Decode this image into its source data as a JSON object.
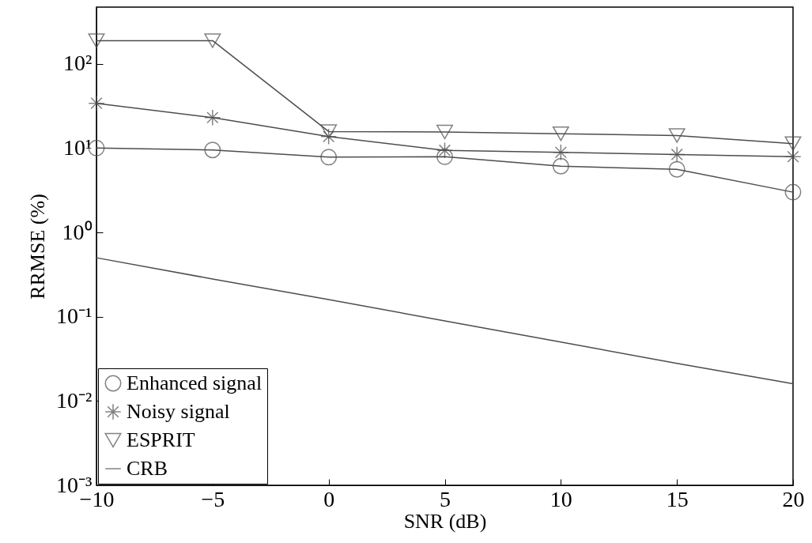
{
  "chart_data": {
    "type": "line",
    "xlabel": "SNR (dB)",
    "ylabel": "RRMSE (%)",
    "x": [
      -10,
      -5,
      0,
      5,
      10,
      15,
      20
    ],
    "series": [
      {
        "name": "Enhanced signal",
        "color": "#4d4d4d",
        "marker": "circle",
        "values": [
          10,
          9.5,
          7.8,
          7.9,
          6.1,
          5.6,
          3.0
        ]
      },
      {
        "name": "Noisy signal",
        "color": "#4d4d4d",
        "marker": "cross",
        "values": [
          34,
          23,
          13.7,
          9.4,
          8.9,
          8.4,
          7.9
        ]
      },
      {
        "name": "ESPRIT",
        "color": "#4d4d4d",
        "marker": "triangle",
        "values": [
          188,
          188,
          15.7,
          15.5,
          14.8,
          14.1,
          11.3
        ]
      },
      {
        "name": "CRB",
        "color": "#4d4d4d",
        "marker": "none",
        "values": [
          0.5,
          0.28,
          0.16,
          0.089,
          0.05,
          0.028,
          0.016
        ]
      }
    ],
    "xlim": [
      -10,
      20
    ],
    "xticks": [
      -10,
      -5,
      0,
      5,
      10,
      15,
      20
    ],
    "ylim": [
      0.001,
      470
    ],
    "yticks": [
      {
        "value": 0.001,
        "label": "10⁻³"
      },
      {
        "value": 0.01,
        "label": "10⁻²"
      },
      {
        "value": 0.1,
        "label": "10⁻¹"
      },
      {
        "value": 1,
        "label": "10⁰"
      },
      {
        "value": 10,
        "label": "10¹"
      },
      {
        "value": 100,
        "label": "10²"
      }
    ],
    "log": "y",
    "grid": false,
    "legend": "bottom left",
    "line_style": "solid"
  }
}
